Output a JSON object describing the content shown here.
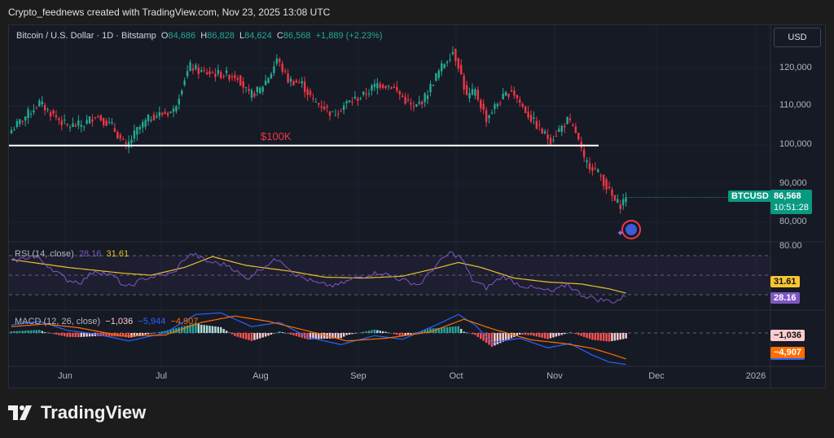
{
  "credit": "Crypto_feednews created with TradingView.com, Nov 23, 2025 13:08 UTC",
  "legend": {
    "symbol": "Bitcoin / U.S. Dollar · 1D · Bitstamp",
    "o_label": "O",
    "o": "84,686",
    "h_label": "H",
    "h": "86,828",
    "l_label": "L",
    "l": "84,624",
    "c_label": "C",
    "c": "86,568",
    "change": "+1,889 (+2.23%)"
  },
  "currency_button": "USD",
  "price_axis": [
    "120,000",
    "110,000",
    "100,000",
    "90,000",
    "80,000"
  ],
  "price_tag": {
    "symbol": "BTCUSD",
    "price": "86,568",
    "countdown": "10:51:28"
  },
  "annotation": {
    "label": "$100K",
    "level": 100000
  },
  "time_axis": [
    "Jun",
    "Jul",
    "Aug",
    "Sep",
    "Oct",
    "Nov",
    "Dec",
    "2026"
  ],
  "rsi": {
    "label": "RSI (14, close)",
    "value": "28.16",
    "ma": "31.61",
    "axis_top": "80.00"
  },
  "macd": {
    "label": "MACD (12, 26, close)",
    "hist": "−1,036",
    "macd": "−5,944",
    "signal": "−4,907"
  },
  "brand": "TradingView",
  "colors": {
    "up": "#22ab94",
    "down": "#f23645",
    "rsi": "#7e57c2",
    "rsi_ma": "#e6c229",
    "macd": "#2962ff",
    "signal": "#ff6d00"
  },
  "chart_data": {
    "type": "candlestick",
    "start": "2025-05-12",
    "end": "2025-11-23",
    "close_keypoints": [
      [
        0,
        104000
      ],
      [
        7,
        109000
      ],
      [
        10,
        111000
      ],
      [
        14,
        108500
      ],
      [
        20,
        105000
      ],
      [
        26,
        105500
      ],
      [
        30,
        108000
      ],
      [
        36,
        105000
      ],
      [
        41,
        99500
      ],
      [
        45,
        104000
      ],
      [
        50,
        107500
      ],
      [
        58,
        109000
      ],
      [
        62,
        117500
      ],
      [
        64,
        120500
      ],
      [
        68,
        119000
      ],
      [
        75,
        118500
      ],
      [
        81,
        118000
      ],
      [
        85,
        113000
      ],
      [
        89,
        114500
      ],
      [
        93,
        119000
      ],
      [
        95,
        122500
      ],
      [
        99,
        117000
      ],
      [
        104,
        116000
      ],
      [
        108,
        111500
      ],
      [
        112,
        110000
      ],
      [
        115,
        108000
      ],
      [
        120,
        111000
      ],
      [
        126,
        113000
      ],
      [
        131,
        116000
      ],
      [
        136,
        115500
      ],
      [
        140,
        112500
      ],
      [
        144,
        109500
      ],
      [
        148,
        112500
      ],
      [
        152,
        118000
      ],
      [
        155,
        121500
      ],
      [
        158,
        124500
      ],
      [
        160,
        121000
      ],
      [
        163,
        112500
      ],
      [
        166,
        114000
      ],
      [
        170,
        107000
      ],
      [
        174,
        111000
      ],
      [
        179,
        114500
      ],
      [
        183,
        110000
      ],
      [
        186,
        107000
      ],
      [
        190,
        103500
      ],
      [
        193,
        101500
      ],
      [
        196,
        104000
      ],
      [
        199,
        106500
      ],
      [
        202,
        103500
      ],
      [
        205,
        96000
      ],
      [
        208,
        94500
      ],
      [
        211,
        92000
      ],
      [
        214,
        88000
      ],
      [
        216,
        85500
      ],
      [
        218,
        84700
      ],
      [
        220,
        86568
      ]
    ],
    "rsi_keypoints": [
      [
        0,
        64
      ],
      [
        8,
        70
      ],
      [
        14,
        58
      ],
      [
        20,
        45
      ],
      [
        25,
        43
      ],
      [
        30,
        55
      ],
      [
        37,
        48
      ],
      [
        41,
        37
      ],
      [
        48,
        47
      ],
      [
        58,
        52
      ],
      [
        62,
        67
      ],
      [
        65,
        72
      ],
      [
        70,
        64
      ],
      [
        78,
        60
      ],
      [
        84,
        46
      ],
      [
        92,
        62
      ],
      [
        96,
        67
      ],
      [
        102,
        50
      ],
      [
        110,
        41
      ],
      [
        116,
        39
      ],
      [
        124,
        48
      ],
      [
        132,
        53
      ],
      [
        140,
        45
      ],
      [
        146,
        40
      ],
      [
        152,
        60
      ],
      [
        157,
        73
      ],
      [
        161,
        68
      ],
      [
        165,
        45
      ],
      [
        170,
        37
      ],
      [
        176,
        49
      ],
      [
        182,
        40
      ],
      [
        188,
        36
      ],
      [
        194,
        33
      ],
      [
        199,
        41
      ],
      [
        204,
        30
      ],
      [
        210,
        25
      ],
      [
        216,
        23
      ],
      [
        220,
        28.16
      ]
    ],
    "rsi_ma_keypoints": [
      [
        0,
        66
      ],
      [
        20,
        58
      ],
      [
        40,
        52
      ],
      [
        50,
        50
      ],
      [
        62,
        58
      ],
      [
        72,
        69
      ],
      [
        84,
        60
      ],
      [
        100,
        54
      ],
      [
        112,
        48
      ],
      [
        126,
        47
      ],
      [
        140,
        49
      ],
      [
        152,
        57
      ],
      [
        160,
        63
      ],
      [
        168,
        58
      ],
      [
        180,
        47
      ],
      [
        192,
        43
      ],
      [
        204,
        41
      ],
      [
        214,
        36
      ],
      [
        220,
        31.61
      ]
    ],
    "macd_keypoints": [
      [
        0,
        1500
      ],
      [
        10,
        2200
      ],
      [
        20,
        500
      ],
      [
        30,
        -200
      ],
      [
        42,
        -1500
      ],
      [
        55,
        0
      ],
      [
        66,
        3500
      ],
      [
        75,
        3800
      ],
      [
        86,
        1200
      ],
      [
        96,
        2000
      ],
      [
        106,
        -800
      ],
      [
        118,
        -2200
      ],
      [
        130,
        -500
      ],
      [
        140,
        -1200
      ],
      [
        152,
        1500
      ],
      [
        160,
        3500
      ],
      [
        166,
        1500
      ],
      [
        172,
        -1800
      ],
      [
        182,
        -1000
      ],
      [
        192,
        -2800
      ],
      [
        200,
        -2000
      ],
      [
        208,
        -4200
      ],
      [
        214,
        -5500
      ],
      [
        220,
        -5944
      ]
    ],
    "signal_keypoints": [
      [
        0,
        1200
      ],
      [
        12,
        1700
      ],
      [
        24,
        1000
      ],
      [
        40,
        -600
      ],
      [
        55,
        -400
      ],
      [
        68,
        2000
      ],
      [
        80,
        3200
      ],
      [
        92,
        2200
      ],
      [
        106,
        400
      ],
      [
        120,
        -1500
      ],
      [
        134,
        -1000
      ],
      [
        150,
        200
      ],
      [
        162,
        2600
      ],
      [
        172,
        800
      ],
      [
        186,
        -1300
      ],
      [
        198,
        -2000
      ],
      [
        208,
        -2900
      ],
      [
        216,
        -4200
      ],
      [
        220,
        -4907
      ]
    ],
    "y_range": [
      76000,
      130000
    ],
    "rsi_range": [
      20,
      82
    ]
  }
}
